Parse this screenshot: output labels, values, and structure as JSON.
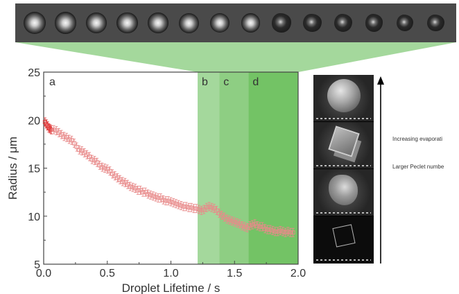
{
  "filmstrip": {
    "frames": [
      "droplet",
      "droplet",
      "droplet",
      "droplet",
      "droplet",
      "droplet",
      "droplet",
      "droplet",
      "crystal",
      "crystal",
      "crystal",
      "crystal",
      "crystal",
      "crystal"
    ]
  },
  "chart_data": {
    "type": "scatter",
    "title": "",
    "xlabel": "Droplet Lifetime / s",
    "ylabel": "Radius / μm",
    "xlim": [
      0,
      2.0
    ],
    "ylim": [
      5,
      25
    ],
    "xticks": [
      "0.0",
      "0.5",
      "1.0",
      "1.5",
      "2.0"
    ],
    "yticks": [
      "5",
      "10",
      "15",
      "20",
      "25"
    ],
    "grid": false,
    "series": [
      {
        "color": "#e88a8a",
        "marker": "square-open-with-errorbars",
        "x": [
          0.01,
          0.02,
          0.03,
          0.04,
          0.05,
          0.06,
          0.08,
          0.1,
          0.12,
          0.14,
          0.16,
          0.18,
          0.2,
          0.22,
          0.24,
          0.26,
          0.28,
          0.3,
          0.32,
          0.34,
          0.36,
          0.38,
          0.4,
          0.42,
          0.44,
          0.46,
          0.48,
          0.5,
          0.52,
          0.54,
          0.56,
          0.58,
          0.6,
          0.62,
          0.64,
          0.66,
          0.68,
          0.7,
          0.72,
          0.74,
          0.76,
          0.78,
          0.8,
          0.82,
          0.84,
          0.86,
          0.88,
          0.9,
          0.92,
          0.94,
          0.96,
          0.98,
          1.0,
          1.02,
          1.04,
          1.06,
          1.08,
          1.1,
          1.12,
          1.14,
          1.16,
          1.18,
          1.2,
          1.22,
          1.24,
          1.26,
          1.28,
          1.3,
          1.32,
          1.34,
          1.36,
          1.38,
          1.4,
          1.42,
          1.44,
          1.46,
          1.48,
          1.5,
          1.52,
          1.54,
          1.56,
          1.58,
          1.6,
          1.62,
          1.64,
          1.66,
          1.68,
          1.7,
          1.72,
          1.74,
          1.76,
          1.78,
          1.8,
          1.82,
          1.84,
          1.86,
          1.88,
          1.9,
          1.92,
          1.94,
          1.96
        ],
        "y": [
          19.8,
          19.6,
          19.4,
          19.2,
          19.1,
          19.0,
          19.0,
          18.9,
          18.7,
          18.5,
          18.3,
          18.2,
          18.0,
          17.9,
          17.6,
          17.2,
          16.9,
          16.8,
          16.6,
          16.4,
          16.2,
          15.9,
          15.8,
          15.6,
          15.3,
          15.1,
          15.0,
          14.9,
          14.7,
          14.4,
          14.2,
          14.0,
          13.8,
          13.6,
          13.5,
          13.3,
          13.1,
          13.0,
          12.9,
          12.7,
          12.7,
          12.5,
          12.5,
          12.3,
          12.2,
          12.1,
          12.0,
          11.9,
          11.9,
          11.7,
          11.6,
          11.6,
          11.5,
          11.4,
          11.3,
          11.2,
          11.1,
          11.0,
          11.0,
          10.9,
          10.9,
          10.8,
          10.8,
          10.7,
          10.6,
          10.7,
          10.9,
          11.0,
          10.9,
          10.8,
          10.6,
          10.3,
          10.1,
          9.9,
          9.7,
          9.6,
          9.5,
          9.4,
          9.3,
          9.2,
          9.0,
          8.9,
          8.8,
          9.0,
          9.1,
          9.2,
          9.0,
          8.9,
          8.9,
          8.7,
          8.6,
          8.6,
          8.5,
          8.4,
          8.4,
          8.5,
          8.4,
          8.3,
          8.4,
          8.3,
          8.3
        ]
      }
    ],
    "highlight_color": "#5ab84a",
    "regions": [
      {
        "label": "a",
        "x0": 0.0,
        "x1": 1.21,
        "shade": 0
      },
      {
        "label": "b",
        "x0": 1.21,
        "x1": 1.38,
        "shade": 0.45
      },
      {
        "label": "c",
        "x0": 1.38,
        "x1": 1.61,
        "shade": 0.7
      },
      {
        "label": "d",
        "x0": 1.61,
        "x1": 2.0,
        "shade": 1.0
      }
    ]
  },
  "sem_panels": [
    {
      "name": "sem-raspberry-particle"
    },
    {
      "name": "sem-cube-cluster"
    },
    {
      "name": "sem-faceted-particle"
    },
    {
      "name": "sem-single-cube"
    }
  ],
  "side_text": {
    "line1": "Increasing evaporati",
    "line2": "Larger Peclet numbe"
  }
}
